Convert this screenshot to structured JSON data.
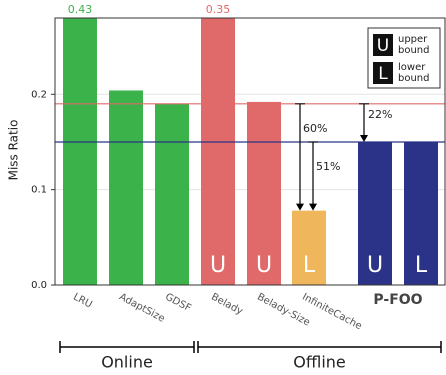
{
  "chart_data": {
    "type": "bar",
    "y_label": "Miss Ratio",
    "categories": [
      "LRU",
      "AdaptSize",
      "GDSF",
      "Belady",
      "Belady-Size",
      "InfiniteCache",
      "P-FOO",
      null
    ],
    "values": [
      0.43,
      0.204,
      0.19,
      0.35,
      0.192,
      0.078,
      0.15,
      0.15
    ],
    "value_labels": [
      "0.43",
      null,
      null,
      "0.35",
      null,
      null,
      null,
      null
    ],
    "colors": [
      "#3bb24a",
      "#3bb24a",
      "#3bb24a",
      "#e06a6a",
      "#e06a6a",
      "#f0b65c",
      "#2b3388",
      "#2b3388"
    ],
    "bar_letters": [
      null,
      null,
      null,
      "U",
      "U",
      "L",
      "U",
      "L"
    ],
    "ylim": [
      0,
      0.28
    ],
    "yticks": [
      {
        "value": 0,
        "label": "0.0"
      },
      0.1,
      0.2
    ],
    "grid": true,
    "reference_lines": [
      {
        "value": 0.19,
        "color": "#e06a6a"
      },
      {
        "value": 0.15,
        "color": "#2b3388"
      }
    ],
    "annotations": [
      {
        "label": "60%",
        "from": 0.19,
        "to": 0.078
      },
      {
        "label": "51%",
        "from": 0.15,
        "to": 0.078
      },
      {
        "label": "22%",
        "from": 0.19,
        "to": 0.15
      }
    ],
    "legend": [
      {
        "key": "U",
        "lines": [
          "upper",
          "bound"
        ]
      },
      {
        "key": "L",
        "lines": [
          "lower",
          "bound"
        ]
      }
    ],
    "groups": [
      {
        "label": "Online",
        "from": 0,
        "to": 2
      },
      {
        "label": "Offline",
        "from": 3,
        "to": 7
      }
    ]
  }
}
